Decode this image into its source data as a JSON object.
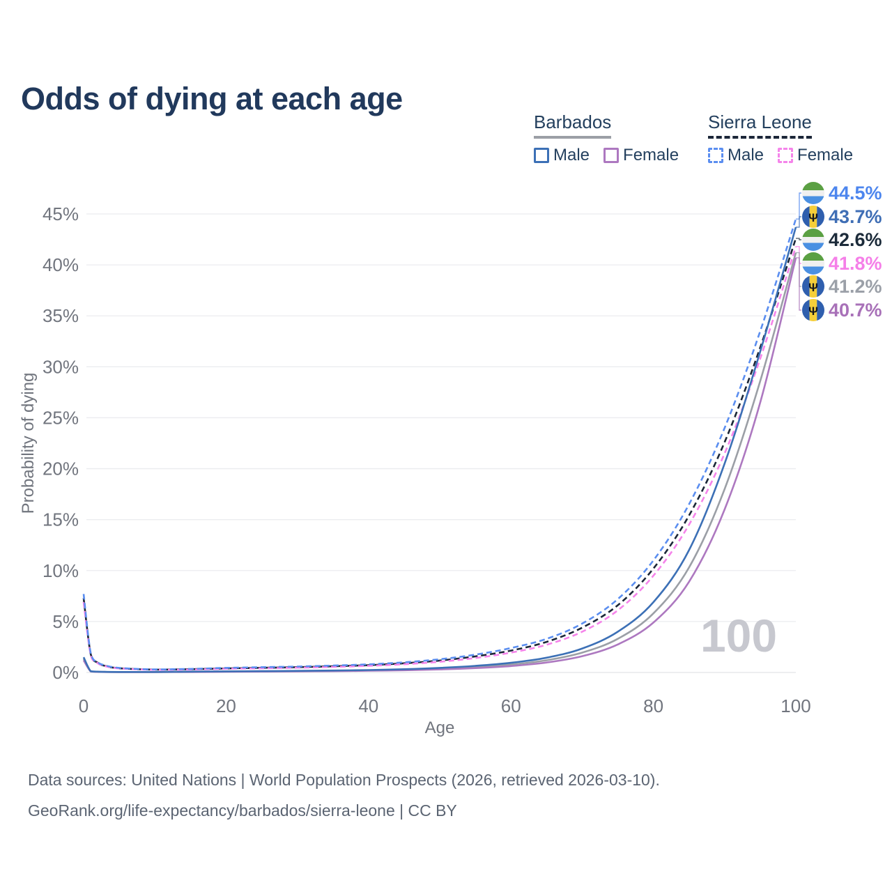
{
  "title": "Odds of dying at each age",
  "watermark": "100",
  "legend": {
    "groups": [
      {
        "id": "barbados",
        "label": "Barbados",
        "line_style": "solid",
        "line_color": "#9b9fa6",
        "items": [
          {
            "label": "Male",
            "color": "#3c70b6",
            "style": "solid"
          },
          {
            "label": "Female",
            "color": "#ad78c0",
            "style": "solid"
          }
        ]
      },
      {
        "id": "sierra-leone",
        "label": "Sierra Leone",
        "line_style": "dashed",
        "line_color": "#1b2638",
        "items": [
          {
            "label": "Male",
            "color": "#5b8ef0",
            "style": "dashed"
          },
          {
            "label": "Female",
            "color": "#f584ea",
            "style": "dashed"
          }
        ]
      }
    ]
  },
  "footer": {
    "line1": "Data sources: United Nations | World Population Prospects (2026, retrieved 2026-03-10).",
    "line2": "GeoRank.org/life-expectancy/barbados/sierra-leone | CC BY"
  },
  "theme": {
    "title_color": "#21395c",
    "tick_color": "#71757e",
    "grid_color": "#ebecef",
    "baseline_color": "#e2e3e8",
    "watermark_color": "#c7c8cf",
    "footer_color": "#5b6472"
  },
  "chart_data": {
    "type": "line",
    "title": "Odds of dying at each age",
    "xlabel": "Age",
    "ylabel": "Probability of dying",
    "xlim": [
      0,
      100
    ],
    "ylim_percent": [
      0,
      46
    ],
    "grid": "horizontal gridlines only",
    "legend_position": "top-right",
    "x_ticks": [
      0,
      20,
      40,
      60,
      80,
      100
    ],
    "y_ticks": [
      {
        "v": 0,
        "label": "0%"
      },
      {
        "v": 5,
        "label": "5%"
      },
      {
        "v": 10,
        "label": "10%"
      },
      {
        "v": 15,
        "label": "15%"
      },
      {
        "v": 20,
        "label": "20%"
      },
      {
        "v": 25,
        "label": "25%"
      },
      {
        "v": 30,
        "label": "30%"
      },
      {
        "v": 35,
        "label": "35%"
      },
      {
        "v": 40,
        "label": "40%"
      },
      {
        "v": 45,
        "label": "45%"
      }
    ],
    "x": [
      0,
      1,
      2,
      3,
      5,
      10,
      15,
      20,
      25,
      30,
      35,
      40,
      45,
      50,
      55,
      60,
      65,
      70,
      75,
      80,
      85,
      90,
      95,
      100
    ],
    "series": [
      {
        "id": "sl-both",
        "name": "Sierra Leone (both sexes)",
        "country": "Sierra Leone",
        "sex": "both",
        "color": "#1b2638",
        "dash": true,
        "values_percent": [
          7.3,
          1.8,
          0.95,
          0.65,
          0.42,
          0.28,
          0.32,
          0.4,
          0.46,
          0.52,
          0.61,
          0.72,
          0.9,
          1.17,
          1.58,
          2.15,
          3.0,
          4.4,
          6.6,
          10.2,
          15.4,
          22.6,
          31.9,
          42.6
        ]
      },
      {
        "id": "sl-female",
        "name": "Sierra Leone Female",
        "country": "Sierra Leone",
        "sex": "female",
        "color": "#f584ea",
        "dash": true,
        "values_percent": [
          6.9,
          1.7,
          0.9,
          0.62,
          0.4,
          0.26,
          0.29,
          0.36,
          0.41,
          0.47,
          0.55,
          0.65,
          0.81,
          1.05,
          1.42,
          1.95,
          2.72,
          4.0,
          6.1,
          9.5,
          14.5,
          21.5,
          30.8,
          41.8
        ]
      },
      {
        "id": "sl-male",
        "name": "Sierra Leone Male",
        "country": "Sierra Leone",
        "sex": "male",
        "color": "#5b8ef0",
        "dash": true,
        "values_percent": [
          7.7,
          1.9,
          1.0,
          0.7,
          0.45,
          0.3,
          0.35,
          0.45,
          0.52,
          0.58,
          0.68,
          0.8,
          1.0,
          1.3,
          1.75,
          2.4,
          3.3,
          4.8,
          7.2,
          11.0,
          16.5,
          24.0,
          33.5,
          44.5
        ]
      },
      {
        "id": "bb-both",
        "name": "Barbados (both sexes)",
        "country": "Barbados",
        "sex": "both",
        "color": "#9b9fa6",
        "dash": false,
        "values_percent": [
          1.35,
          0.11,
          0.07,
          0.055,
          0.045,
          0.045,
          0.07,
          0.09,
          0.11,
          0.13,
          0.16,
          0.2,
          0.27,
          0.37,
          0.53,
          0.78,
          1.2,
          1.95,
          3.3,
          5.8,
          10.3,
          18.0,
          28.6,
          41.2
        ]
      },
      {
        "id": "bb-female",
        "name": "Barbados Female",
        "country": "Barbados",
        "sex": "female",
        "color": "#ad78c0",
        "dash": false,
        "values_percent": [
          1.2,
          0.1,
          0.06,
          0.05,
          0.04,
          0.04,
          0.05,
          0.07,
          0.09,
          0.11,
          0.13,
          0.17,
          0.22,
          0.3,
          0.43,
          0.63,
          0.98,
          1.6,
          2.75,
          4.9,
          8.9,
          16.0,
          26.5,
          40.7
        ]
      },
      {
        "id": "bb-male",
        "name": "Barbados Male",
        "country": "Barbados",
        "sex": "male",
        "color": "#3c70b6",
        "dash": false,
        "values_percent": [
          1.5,
          0.12,
          0.08,
          0.06,
          0.05,
          0.05,
          0.08,
          0.11,
          0.13,
          0.16,
          0.19,
          0.24,
          0.32,
          0.45,
          0.65,
          0.95,
          1.45,
          2.35,
          4.0,
          6.9,
          12.0,
          20.5,
          31.5,
          43.7
        ]
      }
    ],
    "end_labels": [
      {
        "series": "sl-male",
        "label": "44.5%",
        "value_percent": 44.5,
        "color": "#4d86ee",
        "flag": "sierra-leone"
      },
      {
        "series": "bb-male",
        "label": "43.7%",
        "value_percent": 43.7,
        "color": "#3f6eb5",
        "flag": "barbados"
      },
      {
        "series": "sl-both",
        "label": "42.6%",
        "value_percent": 42.6,
        "color": "#1c2b3a",
        "flag": "sierra-leone"
      },
      {
        "series": "sl-female",
        "label": "41.8%",
        "value_percent": 41.8,
        "color": "#f57fe8",
        "flag": "sierra-leone"
      },
      {
        "series": "bb-both",
        "label": "41.2%",
        "value_percent": 41.2,
        "color": "#9ba0a8",
        "flag": "barbados"
      },
      {
        "series": "bb-female",
        "label": "40.7%",
        "value_percent": 40.7,
        "color": "#a871b8",
        "flag": "barbados"
      }
    ],
    "flags": {
      "sierra-leone": {
        "type": "horizontal-stripes",
        "colors": [
          "#5ba043",
          "#f0f0f0",
          "#4a90e2"
        ]
      },
      "barbados": {
        "type": "vertical-stripes",
        "colors": [
          "#2f5fae",
          "#f5cf3a",
          "#2f5fae"
        ],
        "emblem": "Ψ",
        "emblem_color": "#15181c"
      }
    }
  }
}
